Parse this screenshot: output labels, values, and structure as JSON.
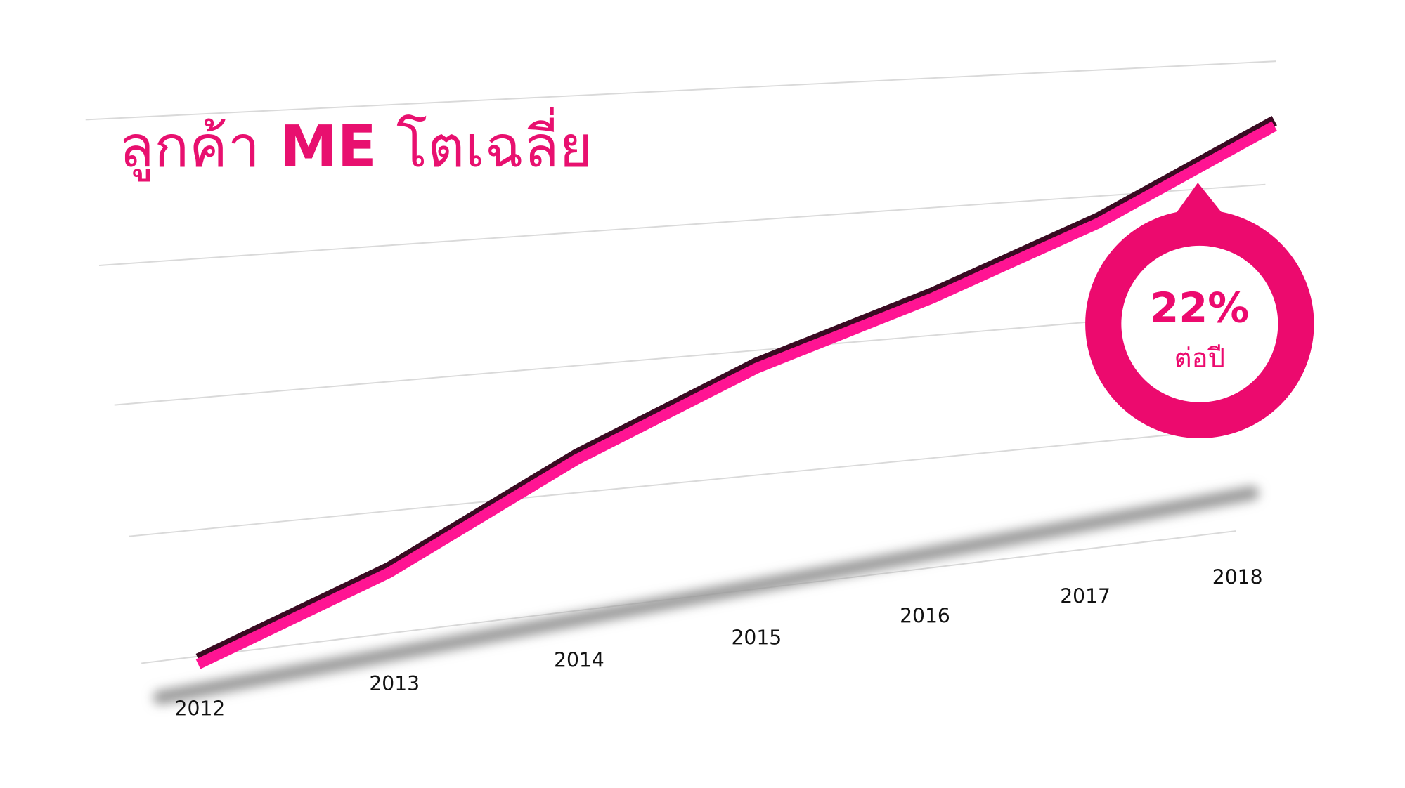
{
  "chart_data": {
    "type": "line",
    "title": [
      "ลูกค้า",
      "ME",
      "โตเฉลี่ย"
    ],
    "categories": [
      "2012",
      "2013",
      "2014",
      "2015",
      "2016",
      "2017",
      "2018"
    ],
    "series": [
      {
        "color": "#ff1493",
        "values": [
          0,
          17,
          38,
          55,
          68,
          82,
          100
        ]
      }
    ],
    "ylim": [
      0,
      100
    ],
    "annotation": {
      "value": "22%",
      "note": "ต่อปี",
      "color": "#ec0a6e"
    }
  }
}
